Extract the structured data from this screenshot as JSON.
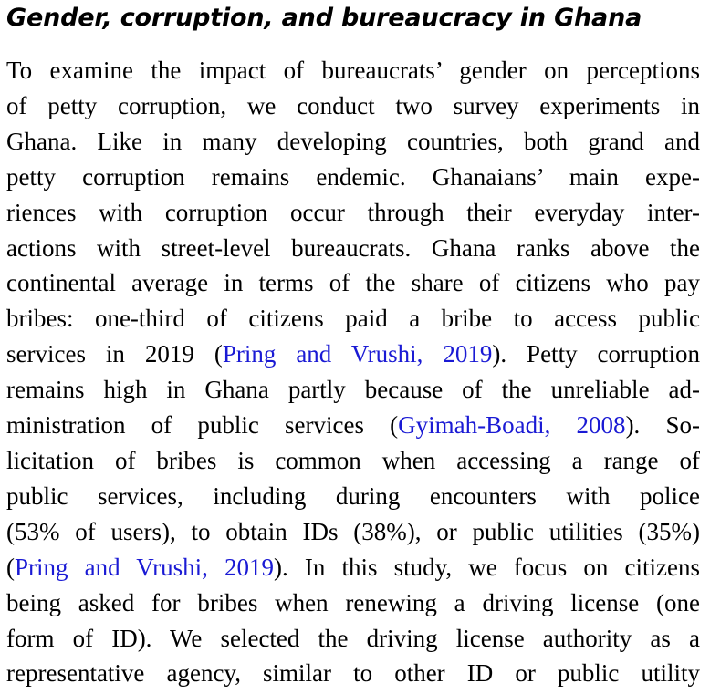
{
  "section": {
    "title": "Gender, corruption, and bureaucracy in Ghana"
  },
  "paragraph": {
    "lines": [
      [
        "To examine the impact of bureaucrats’ gender on perceptions"
      ],
      [
        "of petty corruption, we conduct two survey experiments in"
      ],
      [
        "Ghana. Like in many developing countries, both grand and"
      ],
      [
        "petty corruption remains endemic. Ghanaians’ main expe-"
      ],
      [
        "riences with corruption occur through their everyday inter-"
      ],
      [
        "actions with street-level bureaucrats. Ghana ranks above the"
      ],
      [
        "continental average in terms of the share of citizens who pay"
      ],
      [
        "bribes: one-third of citizens paid a bribe to access public"
      ],
      [
        "services in 2019 (",
        "Pring and Vrushi, 2019",
        "). Petty corruption"
      ],
      [
        "remains high in Ghana partly because of the unreliable ad-"
      ],
      [
        "ministration of public services (",
        "Gyimah-Boadi, 2008",
        "). So-"
      ],
      [
        "licitation of bribes is common when accessing a range of"
      ],
      [
        "public services, including during encounters with police"
      ],
      [
        "(53% of users), to obtain IDs (38%), or public utilities (35%)"
      ],
      [
        "(",
        "Pring and Vrushi, 2019",
        "). In this study, we focus on citizens"
      ],
      [
        "being asked for bribes when renewing a driving license (one"
      ],
      [
        "form of ID). We selected the driving license authority as a"
      ],
      [
        "representative agency, similar to other ID or public utility"
      ]
    ],
    "citation_color": "#1a1ad4"
  }
}
